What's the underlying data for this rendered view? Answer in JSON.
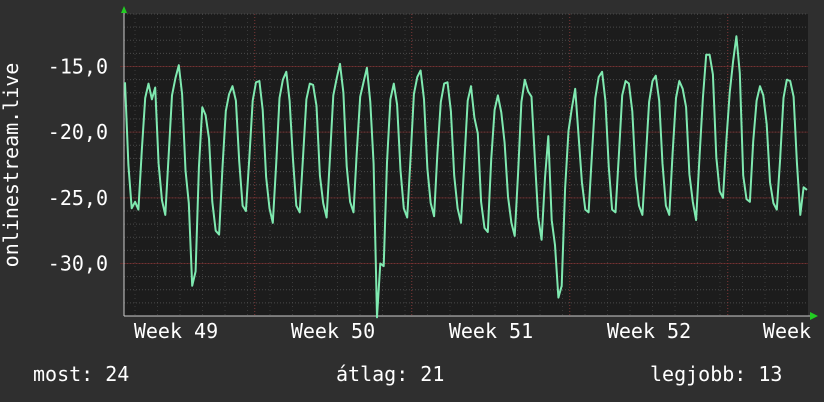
{
  "chart_data": {
    "type": "line",
    "ylabel": "onlinestream.live",
    "ylim": [
      -34.0,
      -11.0
    ],
    "y_inverted": true,
    "y_ticks": [
      -15.0,
      -20.0,
      -25.0,
      -30.0
    ],
    "y_tick_labels": [
      "-15,0",
      "-20,0",
      "-25,0",
      "-30,0"
    ],
    "x_tick_labels": [
      "Week 49",
      "Week 50",
      "Week 51",
      "Week 52",
      "Week"
    ],
    "grid": true,
    "colors": {
      "background": "#2f2f2f",
      "plot": "#1c1c1c",
      "line": "#7fe9b0",
      "grid": "#555555",
      "vgrid": "#8a3a3a",
      "axis_arrow": "#22cc22"
    },
    "series": [
      {
        "values": [
          -16.2,
          -22.5,
          -25.8,
          -25.3,
          -25.9,
          -21.4,
          -17.4,
          -16.3,
          -17.5,
          -16.6,
          -22.4,
          -25.2,
          -26.3,
          -21.7,
          -17.2,
          -15.9,
          -14.9,
          -17.1,
          -22.9,
          -25.4,
          -31.7,
          -30.6,
          -22.7,
          -18.1,
          -18.7,
          -20.5,
          -25.3,
          -27.5,
          -27.8,
          -22.8,
          -18.4,
          -17.1,
          -16.5,
          -17.6,
          -22.2,
          -25.6,
          -26.0,
          -22.0,
          -17.6,
          -16.2,
          -16.1,
          -18.3,
          -23.4,
          -25.8,
          -26.9,
          -22.4,
          -17.4,
          -16.0,
          -15.4,
          -17.6,
          -22.1,
          -25.6,
          -26.1,
          -21.8,
          -17.5,
          -16.3,
          -16.4,
          -18.0,
          -23.3,
          -25.4,
          -26.5,
          -22.0,
          -17.2,
          -15.9,
          -14.8,
          -17.0,
          -22.6,
          -25.3,
          -26.1,
          -21.5,
          -17.3,
          -16.2,
          -15.1,
          -17.7,
          -22.4,
          -34.1,
          -30.0,
          -30.2,
          -22.3,
          -17.5,
          -16.3,
          -17.9,
          -22.9,
          -25.8,
          -26.5,
          -21.9,
          -17.1,
          -15.8,
          -15.3,
          -17.5,
          -22.8,
          -25.4,
          -26.4,
          -21.6,
          -17.7,
          -16.3,
          -16.2,
          -18.4,
          -23.3,
          -25.8,
          -26.9,
          -22.3,
          -17.6,
          -16.5,
          -18.9,
          -20.1,
          -25.3,
          -27.3,
          -27.6,
          -22.1,
          -18.3,
          -17.2,
          -18.5,
          -20.8,
          -24.9,
          -26.9,
          -27.9,
          -23.1,
          -17.7,
          -16.0,
          -16.9,
          -17.3,
          -22.1,
          -26.5,
          -28.2,
          -23.5,
          -20.3,
          -26.7,
          -28.6,
          -32.6,
          -31.7,
          -24.3,
          -19.9,
          -18.2,
          -16.7,
          -20.2,
          -23.8,
          -25.9,
          -26.1,
          -21.6,
          -17.4,
          -15.8,
          -15.4,
          -17.6,
          -22.7,
          -25.9,
          -26.1,
          -21.7,
          -17.2,
          -16.1,
          -16.3,
          -18.4,
          -23.4,
          -25.6,
          -26.3,
          -22.1,
          -17.7,
          -16.1,
          -15.7,
          -17.6,
          -22.4,
          -25.6,
          -26.3,
          -21.6,
          -17.4,
          -16.1,
          -16.7,
          -18.1,
          -23.2,
          -25.3,
          -26.7,
          -21.9,
          -17.4,
          -14.1,
          -14.1,
          -15.6,
          -21.9,
          -24.5,
          -25.0,
          -20.6,
          -17.0,
          -14.6,
          -12.7,
          -15.5,
          -23.3,
          -25.1,
          -25.3,
          -20.7,
          -17.6,
          -16.5,
          -17.2,
          -19.4,
          -23.8,
          -25.4,
          -25.9,
          -22.1,
          -17.4,
          -16.0,
          -16.1,
          -17.3,
          -22.3,
          -26.3,
          -24.2,
          -24.4
        ]
      }
    ]
  },
  "stats": {
    "now": "most: 24",
    "avg": "átlag: 21",
    "best": "legjobb: 13"
  }
}
